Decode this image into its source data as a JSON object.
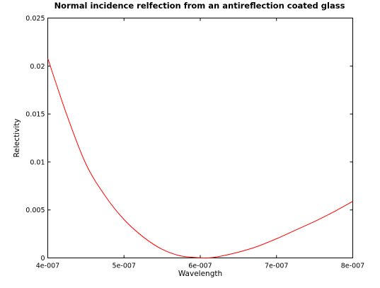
{
  "chart_data": {
    "type": "line",
    "title": "Normal incidence relfection from an antireflection coated glass",
    "xlabel": "Wavelength",
    "ylabel": "Relectivity",
    "xlim": [
      4e-07,
      8e-07
    ],
    "ylim": [
      0,
      0.025
    ],
    "x_ticks": [
      {
        "value": 4e-07,
        "label": "4e-007"
      },
      {
        "value": 5e-07,
        "label": "5e-007"
      },
      {
        "value": 6e-07,
        "label": "6e-007"
      },
      {
        "value": 7e-07,
        "label": "7e-007"
      },
      {
        "value": 8e-07,
        "label": "8e-007"
      }
    ],
    "y_ticks": [
      {
        "value": 0,
        "label": "0"
      },
      {
        "value": 0.005,
        "label": "0.005"
      },
      {
        "value": 0.01,
        "label": "0.01"
      },
      {
        "value": 0.015,
        "label": "0.015"
      },
      {
        "value": 0.02,
        "label": "0.02"
      },
      {
        "value": 0.025,
        "label": "0.025"
      }
    ],
    "grid": false,
    "series": [
      {
        "color": "#ff0000",
        "x": [
          4e-07,
          4.25e-07,
          4.5e-07,
          4.75e-07,
          5e-07,
          5.25e-07,
          5.5e-07,
          5.75e-07,
          6e-07,
          6.1e-07,
          6.25e-07,
          6.5e-07,
          6.75e-07,
          7e-07,
          7.25e-07,
          7.5e-07,
          7.75e-07,
          8e-07
        ],
        "y": [
          0.0208,
          0.0149,
          0.0098,
          0.0065,
          0.004,
          0.0022,
          0.0009,
          0.0002,
          2e-05,
          0.0,
          0.00015,
          0.0006,
          0.0012,
          0.002,
          0.0029,
          0.0038,
          0.0048,
          0.0059
        ]
      }
    ]
  }
}
